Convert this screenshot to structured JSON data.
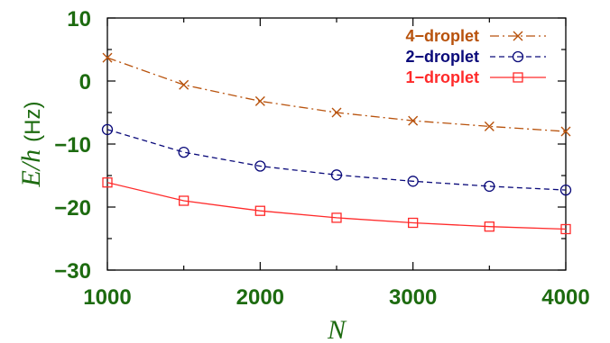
{
  "colors": {
    "axis_text": "#1d6b10",
    "frame": "#000000",
    "one_droplet": "#ff2a2a",
    "two_droplet": "#0a0a7a",
    "four_droplet": "#b8520c"
  },
  "chart_data": {
    "type": "line",
    "xlabel": "N",
    "ylabel_symbol": "E/h",
    "ylabel_unit": "(Hz)",
    "xlim": [
      1000,
      4000
    ],
    "ylim": [
      -30,
      10
    ],
    "x_ticks": [
      1000,
      2000,
      3000,
      4000
    ],
    "x_tick_labels": [
      "1000",
      "2000",
      "3000",
      "4000"
    ],
    "x_minor_ticks": [
      1500,
      2500,
      3500
    ],
    "y_ticks": [
      -30,
      -20,
      -10,
      0,
      10
    ],
    "y_tick_labels": [
      "−30",
      "−20",
      "−10",
      "0",
      "10"
    ],
    "y_minor_ticks": [
      -25,
      -15,
      -5,
      5
    ],
    "legend_position": "top-right",
    "grid": false,
    "x": [
      1000,
      1500,
      2000,
      2500,
      3000,
      3500,
      4000
    ],
    "series": [
      {
        "name": "4−droplet",
        "color": "#b8520c",
        "marker": "x",
        "line_style": "dash-dot",
        "values": [
          3.7,
          -0.6,
          -3.2,
          -5.0,
          -6.3,
          -7.2,
          -8.0
        ]
      },
      {
        "name": "2−droplet",
        "color": "#0a0a7a",
        "marker": "circle",
        "line_style": "dashed",
        "values": [
          -7.7,
          -11.3,
          -13.5,
          -14.9,
          -15.9,
          -16.7,
          -17.3
        ]
      },
      {
        "name": "1−droplet",
        "color": "#ff2a2a",
        "marker": "square",
        "line_style": "solid",
        "values": [
          -16.1,
          -19.0,
          -20.6,
          -21.7,
          -22.5,
          -23.1,
          -23.5
        ]
      }
    ]
  }
}
